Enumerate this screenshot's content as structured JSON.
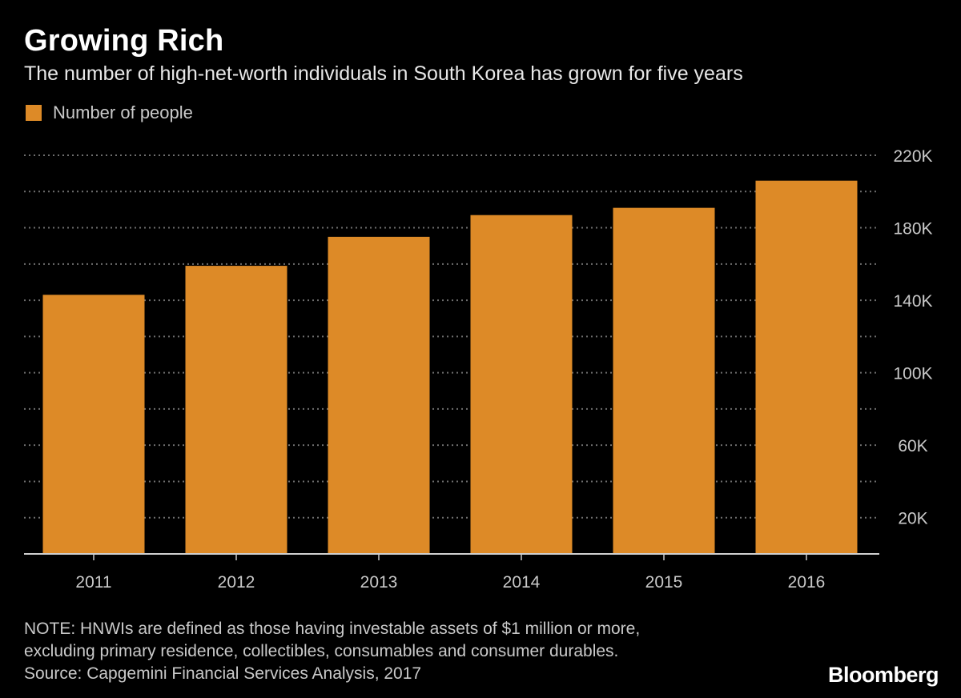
{
  "header": {
    "title": "Growing Rich",
    "subtitle": "The number of high-net-worth individuals in South Korea has grown for five years"
  },
  "legend": {
    "label": "Number of people"
  },
  "colors": {
    "bar": "#DD8A27",
    "background": "#000000",
    "grid": "#6e6e6e",
    "axis_text": "#c9c9c9"
  },
  "chart_data": {
    "type": "bar",
    "title": "Growing Rich",
    "subtitle": "The number of high-net-worth individuals in South Korea has grown for five years",
    "categories": [
      "2011",
      "2012",
      "2013",
      "2014",
      "2015",
      "2016"
    ],
    "series": [
      {
        "name": "Number of people",
        "values": [
          143000,
          159000,
          175000,
          187000,
          191000,
          206000
        ]
      }
    ],
    "ylim": [
      0,
      220000
    ],
    "yticks": [
      20000,
      60000,
      100000,
      140000,
      180000,
      220000
    ],
    "ytick_labels": [
      "20K",
      "60K",
      "100K",
      "140K",
      "180K",
      "220K"
    ],
    "grid_step": 20000,
    "grid": true,
    "y_axis_side": "right",
    "legend_position": "top-left",
    "xlabel": "",
    "ylabel": ""
  },
  "footer": {
    "note_lines": [
      "NOTE: HNWIs are defined as those having investable assets of $1 million or more,",
      "excluding primary residence, collectibles, consumables and consumer durables.",
      "Source: Capgemini Financial Services Analysis, 2017"
    ],
    "brand": "Bloomberg"
  }
}
